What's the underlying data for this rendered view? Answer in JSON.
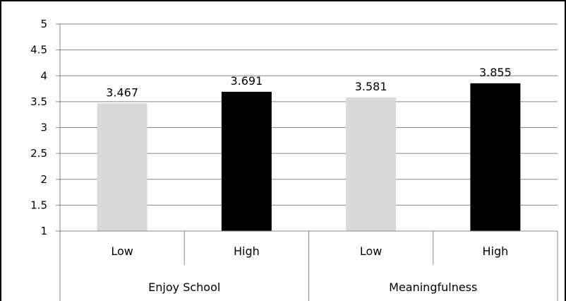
{
  "chart_data": {
    "type": "bar",
    "title": "",
    "xlabel": "",
    "ylabel": "",
    "ylim": [
      1,
      5
    ],
    "yticks": [
      1,
      1.5,
      2,
      2.5,
      3,
      3.5,
      4,
      4.5,
      5
    ],
    "ytick_labels": [
      "1",
      "1.5",
      "2",
      "2.5",
      "3",
      "3.5",
      "4",
      "4.5",
      "5"
    ],
    "grid": true,
    "legend": "none",
    "groups": [
      "Enjoy School",
      "Meaningfulness"
    ],
    "categories": [
      "Low",
      "High",
      "Low",
      "High"
    ],
    "values": [
      3.467,
      3.691,
      3.581,
      3.855
    ],
    "value_labels": [
      "3.467",
      "3.691",
      "3.581",
      "3.855"
    ],
    "bar_colors": [
      "#d9d9d9",
      "#000000",
      "#d9d9d9",
      "#000000"
    ]
  },
  "colors": {
    "gridline": "#868686",
    "axis": "#868686",
    "frame": "#000000",
    "low_bar": "#d9d9d9",
    "high_bar": "#000000"
  }
}
